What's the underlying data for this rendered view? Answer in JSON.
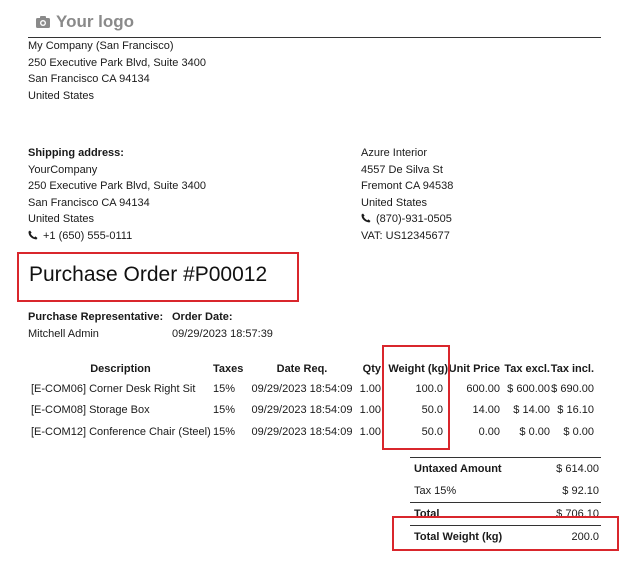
{
  "logo": {
    "text": "Your logo",
    "icon": "camera-icon"
  },
  "company_address": [
    "My Company (San Francisco)",
    "250 Executive Park Blvd, Suite 3400",
    "San Francisco CA 94134",
    "United States"
  ],
  "shipping": {
    "heading": "Shipping address:",
    "lines": [
      "YourCompany",
      "250 Executive Park Blvd, Suite 3400",
      "San Francisco CA 94134",
      "United States"
    ],
    "phone": "+1 (650) 555-0111"
  },
  "vendor": {
    "lines": [
      "Azure Interior",
      "4557 De Silva St",
      "Fremont CA 94538",
      "United States"
    ],
    "phone": "(870)-931-0505",
    "vat": "VAT: US12345677"
  },
  "title": "Purchase Order #P00012",
  "info": {
    "rep_label": "Purchase Representative:",
    "rep_value": "Mitchell Admin",
    "date_label": "Order Date:",
    "date_value": "09/29/2023 18:57:39"
  },
  "table": {
    "headers": {
      "description": "Description",
      "taxes": "Taxes",
      "date_req": "Date Req.",
      "qty": "Qty",
      "weight": "Weight (kg)",
      "unit_price": "Unit Price",
      "tax_excl": "Tax excl.",
      "tax_incl": "Tax incl."
    },
    "rows": [
      {
        "description": "[E-COM06] Corner Desk Right Sit",
        "taxes": "15%",
        "date_req": "09/29/2023 18:54:09",
        "qty": "1.00",
        "weight": "100.0",
        "unit_price": "600.00",
        "tax_excl": "$ 600.00",
        "tax_incl": "$ 690.00"
      },
      {
        "description": "[E-COM08] Storage Box",
        "taxes": "15%",
        "date_req": "09/29/2023 18:54:09",
        "qty": "1.00",
        "weight": "50.0",
        "unit_price": "14.00",
        "tax_excl": "$ 14.00",
        "tax_incl": "$ 16.10"
      },
      {
        "description": "[E-COM12] Conference Chair (Steel)",
        "taxes": "15%",
        "date_req": "09/29/2023 18:54:09",
        "qty": "1.00",
        "weight": "50.0",
        "unit_price": "0.00",
        "tax_excl": "$ 0.00",
        "tax_incl": "$ 0.00"
      }
    ]
  },
  "totals": {
    "untaxed_label": "Untaxed Amount",
    "untaxed_value": "$ 614.00",
    "tax_label": "Tax 15%",
    "tax_value": "$ 92.10",
    "total_label": "Total",
    "total_value": "$ 706.10",
    "weight_label": "Total Weight (kg)",
    "weight_value": "200.0"
  },
  "colors": {
    "highlight": "#d9262c",
    "logo": "#8a8a8a"
  }
}
